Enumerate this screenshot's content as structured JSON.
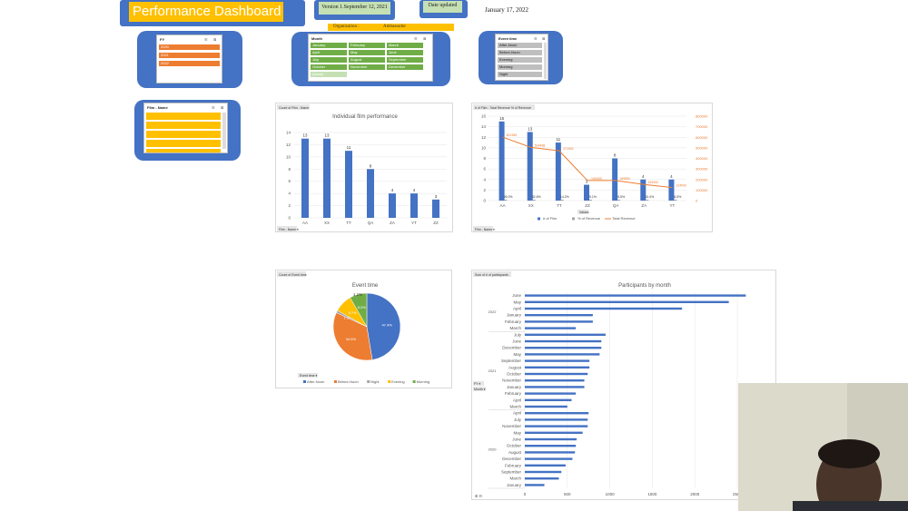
{
  "header": {
    "title": "Performance Dashboard",
    "version": "Version 1.September 12, 2021",
    "date_updated_label": "Date updated",
    "date_updated": "January 17, 2022",
    "organization_label": "Organization :",
    "organization": "Ambassador"
  },
  "slicers": {
    "fy": {
      "title": "FY",
      "items": [
        "2020",
        "2021",
        "2022"
      ],
      "color": "#ed7d31"
    },
    "month": {
      "title": "Month",
      "items": [
        "January",
        "February",
        "March",
        "April",
        "May",
        "June",
        "July",
        "August",
        "September",
        "October",
        "November",
        "December",
        "(blank)"
      ],
      "color": "#70ad47"
    },
    "event_time": {
      "title": "Event time",
      "items": [
        "After-Noon",
        "Before-Noon",
        "Evening",
        "Morning",
        "Night"
      ],
      "color": "#a6a6a6"
    },
    "film_name": {
      "title": "Film - Name",
      "items": [
        "",
        "",
        "",
        "",
        ""
      ],
      "color": "#ffc000"
    }
  },
  "colors": {
    "accent": "#4472c4",
    "orange": "#ed7d31",
    "gray": "#a5a5a5",
    "yellow": "#ffc000",
    "green": "#70ad47"
  },
  "chart_data": [
    {
      "type": "bar",
      "field_button": "Count of Film - Name",
      "axis_button": "Film - Name",
      "title": "Individual film performance",
      "categories": [
        "AA",
        "XX",
        "TT",
        "QA",
        "ZA",
        "YT",
        "ZZ"
      ],
      "values": [
        13,
        13,
        11,
        8,
        4,
        4,
        3
      ],
      "ylim": [
        0,
        14
      ],
      "yticks": [
        0,
        2,
        4,
        6,
        8,
        10,
        12,
        14
      ]
    },
    {
      "type": "bar",
      "field_button": "# of Film - Total Revenue  % of Revenue",
      "axis_button": "Film - Name",
      "x_field": "Values",
      "categories": [
        "AA",
        "XX",
        "TT",
        "ZZ",
        "QA",
        "ZA",
        "YT"
      ],
      "series": [
        {
          "name": "# of Film",
          "values": [
            15,
            13,
            11,
            3,
            8,
            4,
            4
          ]
        },
        {
          "name": "% of Revenue",
          "labels": [
            "26.0%",
            "32.6%",
            "14.2%",
            "5.1%",
            "5.5%",
            "10.4%",
            "6.5%"
          ]
        },
        {
          "name": "Total Revenue",
          "values": [
            601389,
            504468,
            471894,
            190000,
            189850,
            153000,
            124000
          ]
        }
      ],
      "bar_labels": [
        "15",
        "13",
        "11",
        "3",
        "8",
        "4",
        "4"
      ],
      "ylim": [
        0,
        16
      ],
      "yticks": [
        0,
        2,
        4,
        6,
        8,
        10,
        12,
        14,
        16
      ],
      "y2ticks": [
        "0",
        "100000",
        "200000",
        "300000",
        "400000",
        "500000",
        "600000",
        "700000",
        "800000"
      ]
    },
    {
      "type": "pie",
      "field_button": "Count of Event time",
      "legend_button": "Event time",
      "title": "Event time",
      "series": [
        {
          "name": "After-Noon",
          "value": 47.4,
          "label": "47.4%"
        },
        {
          "name": "Before-Noon",
          "value": 34.5,
          "label": "34.5%"
        },
        {
          "name": "Night",
          "value": 1.1,
          "label": "1.10%"
        },
        {
          "name": "Evening",
          "value": 8.7,
          "label": "8.7%"
        },
        {
          "name": "Morning",
          "value": 8.3,
          "label": "8.3%"
        }
      ],
      "top_label": "1.1%"
    },
    {
      "type": "bar",
      "orientation": "horizontal",
      "field_button": "Sum of # of participants",
      "row_buttons": [
        "FY",
        "Month"
      ],
      "corner_labels": "⊞ ⊟",
      "title": "Participants by month",
      "groups": [
        {
          "fy": "2022",
          "categories": [
            "June",
            "May",
            "April",
            "January",
            "February",
            "March"
          ],
          "values": [
            2600,
            2400,
            1850,
            800,
            800,
            600
          ]
        },
        {
          "fy": "2021",
          "categories": [
            "July",
            "June",
            "December",
            "May",
            "September",
            "August",
            "October",
            "November",
            "January",
            "February",
            "April",
            "March"
          ],
          "values": [
            950,
            900,
            900,
            880,
            760,
            760,
            740,
            700,
            700,
            600,
            550,
            500
          ]
        },
        {
          "fy": "2020",
          "categories": [
            "April",
            "July",
            "November",
            "May",
            "June",
            "October",
            "August",
            "December",
            "February",
            "September",
            "March",
            "January"
          ],
          "values": [
            750,
            740,
            740,
            680,
            610,
            600,
            590,
            560,
            480,
            430,
            400,
            230
          ]
        }
      ],
      "xticks": [
        "0",
        "500",
        "1000",
        "1500",
        "2000",
        "2500"
      ],
      "xlim": [
        0,
        2500
      ]
    }
  ]
}
